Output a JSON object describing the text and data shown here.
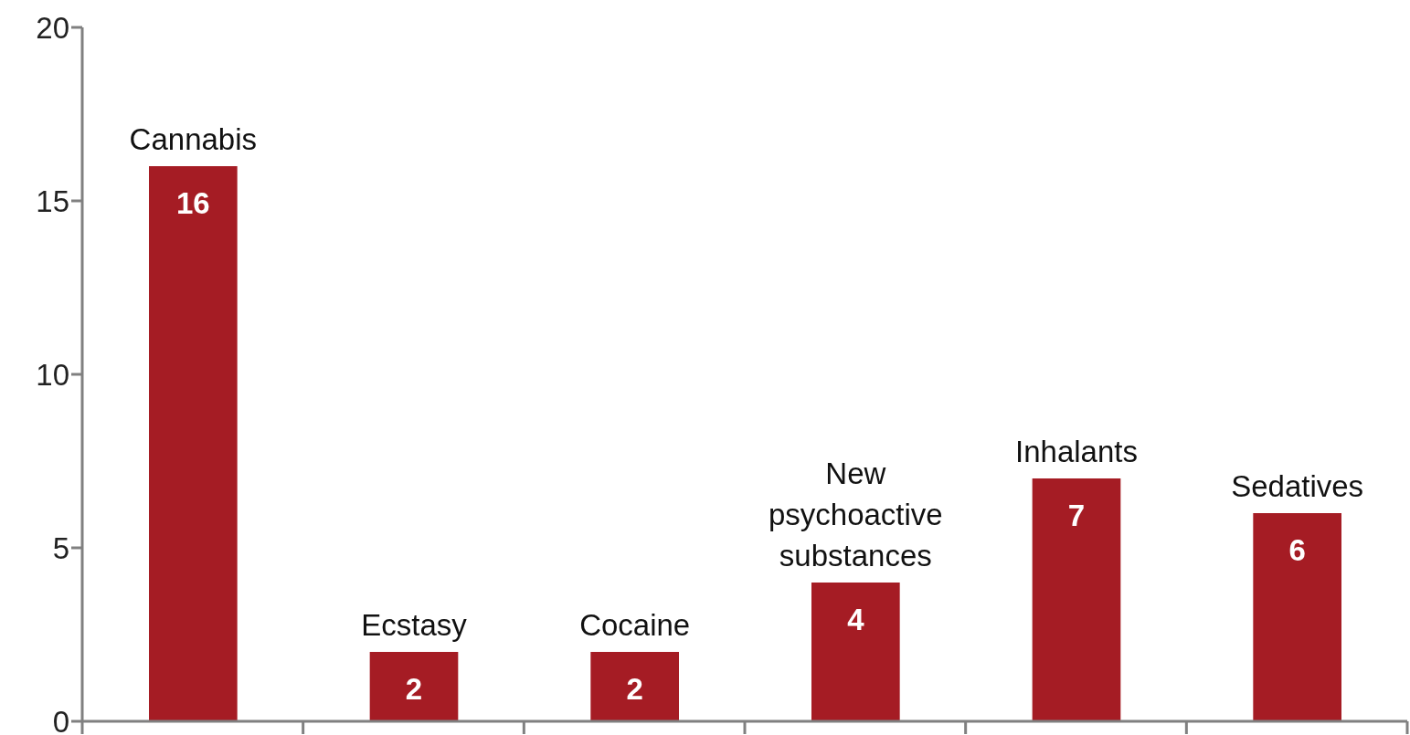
{
  "chart_data": {
    "type": "bar",
    "categories": [
      "Cannabis",
      "Ecstasy",
      "Cocaine",
      "New psychoactive substances",
      "Inhalants",
      "Sedatives"
    ],
    "values": [
      16,
      2,
      2,
      4,
      7,
      6
    ],
    "color": "#a51c24",
    "ylim": [
      0,
      20
    ],
    "yticks": [
      0,
      5,
      10,
      15,
      20
    ],
    "grid": false,
    "data_labels": true,
    "tick_labels": "y"
  }
}
